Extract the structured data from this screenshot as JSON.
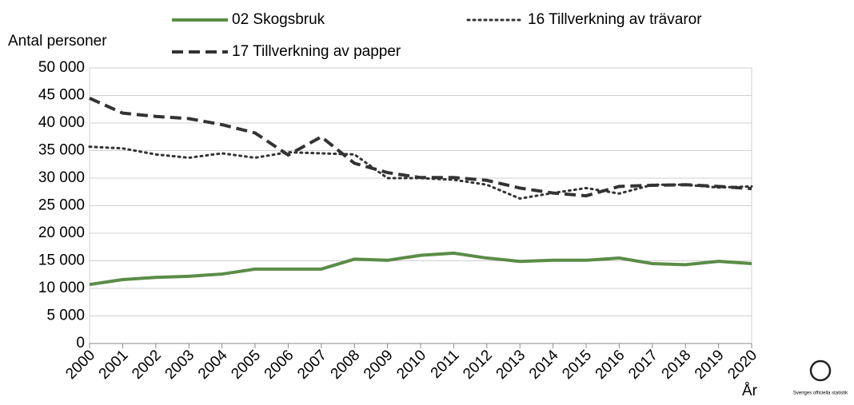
{
  "chart_data": {
    "type": "line",
    "ylabel": "Antal personer",
    "xlabel": "År",
    "categories": [
      "2000",
      "2001",
      "2002",
      "2003",
      "2004",
      "2005",
      "2006",
      "2007",
      "2008",
      "2009",
      "2010",
      "2011",
      "2012",
      "2013",
      "2014",
      "2015",
      "2016",
      "2017",
      "2018",
      "2019",
      "2020"
    ],
    "series": [
      {
        "name": "02 Skogsbruk",
        "color": "#5b8c47",
        "dash": "solid",
        "values": [
          10700,
          11600,
          12000,
          12200,
          12600,
          13500,
          13500,
          13500,
          15300,
          15100,
          16000,
          16400,
          15500,
          14900,
          15100,
          15100,
          15500,
          14500,
          14300,
          14900,
          14500
        ]
      },
      {
        "name": "16 Tillverkning av trävaror",
        "color": "#333333",
        "dash": "dotted",
        "values": [
          35700,
          35400,
          34300,
          33700,
          34500,
          33700,
          34700,
          34500,
          34300,
          30000,
          30000,
          29700,
          28800,
          26300,
          27300,
          28200,
          27200,
          28800,
          28800,
          28300,
          28500
        ]
      },
      {
        "name": "17 Tillverkning av papper",
        "color": "#333333",
        "dash": "dashed",
        "values": [
          44500,
          41800,
          41200,
          40800,
          39700,
          38200,
          34200,
          37500,
          32700,
          31000,
          30100,
          30100,
          29600,
          28200,
          27300,
          26800,
          28500,
          28700,
          28800,
          28500,
          28100
        ]
      }
    ],
    "ylim": [
      0,
      50000
    ],
    "yticks": [
      0,
      {
        "value": 5000,
        "label": "5 000"
      },
      {
        "value": 10000,
        "label": "10 000"
      },
      {
        "value": 15000,
        "label": "15 000"
      },
      {
        "value": 20000,
        "label": "20 000"
      },
      {
        "value": 25000,
        "label": "25 000"
      },
      {
        "value": 30000,
        "label": "30 000"
      },
      {
        "value": 35000,
        "label": "35 000"
      },
      {
        "value": 40000,
        "label": "40 000"
      },
      {
        "value": 45000,
        "label": "45 000"
      },
      {
        "value": 50000,
        "label": "50 000"
      }
    ],
    "grid": true,
    "logo_text": "Sveriges officiella statistik"
  }
}
